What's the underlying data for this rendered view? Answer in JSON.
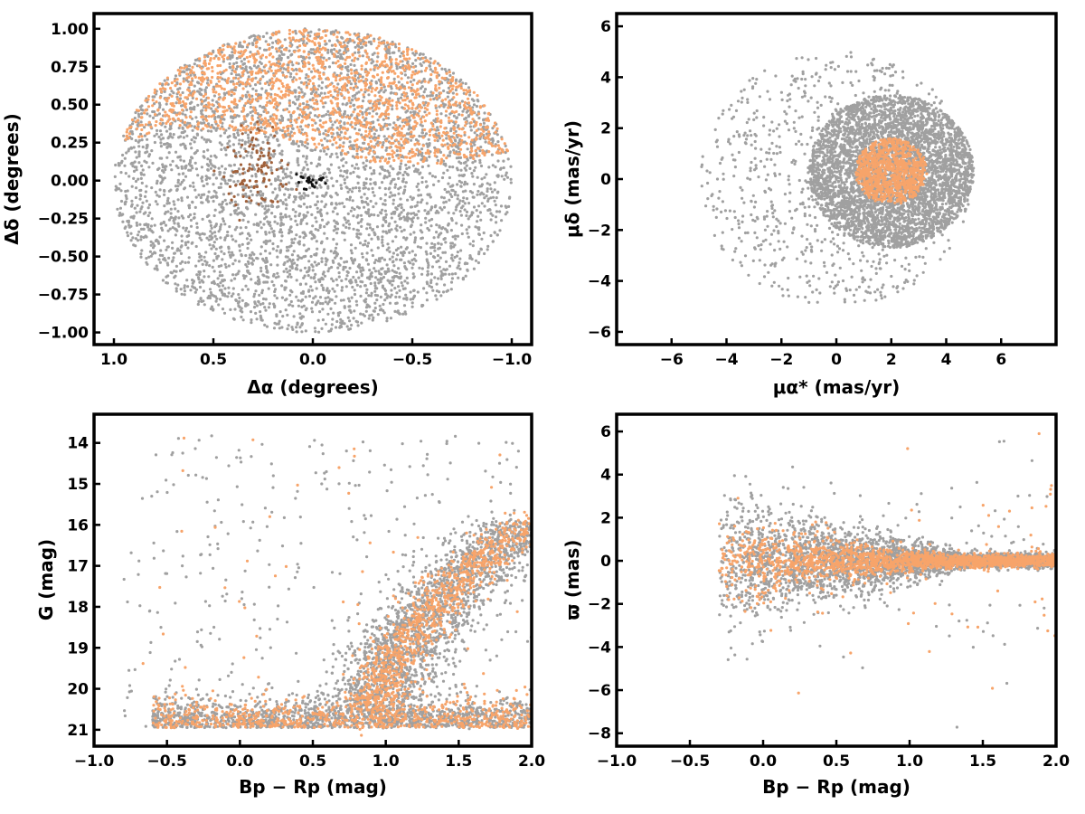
{
  "colors": {
    "field": "#a0a0a0",
    "member": "#f7a46a",
    "black": "#111111",
    "brown": "#a0603a"
  },
  "chart_data": [
    {
      "id": "sky",
      "type": "scatter",
      "xlabel": "Δα (degrees)",
      "ylabel": "Δδ (degrees)",
      "xlim": [
        1.1,
        -1.1
      ],
      "ylim": [
        -1.08,
        1.1
      ],
      "xticks": [
        1.0,
        0.5,
        0.0,
        -0.5,
        -1.0
      ],
      "xtick_labels": [
        "1.0",
        "0.5",
        "0.0",
        "−0.5",
        "−1.0"
      ],
      "yticks": [
        -1.0,
        -0.75,
        -0.5,
        -0.25,
        0.0,
        0.25,
        0.5,
        0.75,
        1.0
      ],
      "ytick_labels": [
        "−1.00",
        "−0.75",
        "−0.50",
        "−0.25",
        "0.00",
        "0.25",
        "0.50",
        "0.75",
        "1.00"
      ],
      "grid": false,
      "series": [
        {
          "shape": "disk",
          "center": [
            0,
            0
          ],
          "radius": 1.0,
          "color": "field",
          "count": 4200
        },
        {
          "shape": "cap",
          "center": [
            0,
            0
          ],
          "radius": 1.0,
          "dec_min": 0.3,
          "color": "member",
          "count": 1500
        },
        {
          "shape": "cluster",
          "center": [
            0.28,
            0.05
          ],
          "spread": [
            0.07,
            0.13
          ],
          "color": "brown",
          "count": 110
        },
        {
          "shape": "cluster",
          "center": [
            0.0,
            0.0
          ],
          "spread": [
            0.04,
            0.03
          ],
          "color": "black",
          "count": 24
        }
      ]
    },
    {
      "id": "proper-motion",
      "type": "scatter",
      "xlabel": "μα* (mas/yr)",
      "ylabel": "μδ (mas/yr)",
      "xlim": [
        -8,
        8
      ],
      "ylim": [
        -6.5,
        6.5
      ],
      "xticks": [
        -6,
        -4,
        -2,
        0,
        2,
        4,
        6
      ],
      "xtick_labels": [
        "−6",
        "−4",
        "−2",
        "0",
        "2",
        "4",
        "6"
      ],
      "yticks": [
        -6,
        -4,
        -2,
        0,
        2,
        4,
        6
      ],
      "ytick_labels": [
        "−6",
        "−4",
        "−2",
        "0",
        "2",
        "4",
        "6"
      ],
      "grid": false,
      "series": [
        {
          "shape": "disk",
          "center": [
            2.0,
            0.3
          ],
          "radius": 3.0,
          "color": "field",
          "count": 4000
        },
        {
          "shape": "disk-sparse",
          "center": [
            0,
            0
          ],
          "radius": 5.0,
          "color": "field",
          "count": 900
        },
        {
          "shape": "disk",
          "center": [
            2.0,
            0.3
          ],
          "radius": 1.3,
          "color": "member",
          "count": 900
        }
      ]
    },
    {
      "id": "cmd",
      "type": "scatter",
      "xlabel": "Bp − Rp (mag)",
      "ylabel": "G (mag)",
      "xlim": [
        -1.0,
        2.0
      ],
      "ylim": [
        21.4,
        13.3
      ],
      "xticks": [
        -1.0,
        -0.5,
        0.0,
        0.5,
        1.0,
        1.5,
        2.0
      ],
      "xtick_labels": [
        "−1.0",
        "−0.5",
        "0.0",
        "0.5",
        "1.0",
        "1.5",
        "2.0"
      ],
      "yticks": [
        14,
        15,
        16,
        17,
        18,
        19,
        20,
        21
      ],
      "ytick_labels": [
        "14",
        "15",
        "16",
        "17",
        "18",
        "19",
        "20",
        "21"
      ],
      "grid": false,
      "series": [
        {
          "shape": "sequence",
          "color": "field",
          "count": 3500
        },
        {
          "shape": "sequence",
          "color": "member",
          "count": 1800
        }
      ]
    },
    {
      "id": "parallax",
      "type": "scatter",
      "xlabel": "Bp − Rp (mag)",
      "ylabel": "ϖ (mas)",
      "xlim": [
        -1.0,
        2.0
      ],
      "ylim": [
        -8.6,
        6.8
      ],
      "xticks": [
        -1.0,
        -0.5,
        0.0,
        0.5,
        1.0,
        1.5,
        2.0
      ],
      "xtick_labels": [
        "−1.0",
        "−0.5",
        "0.0",
        "0.5",
        "1.0",
        "1.5",
        "2.0"
      ],
      "yticks": [
        -8,
        -6,
        -4,
        -2,
        0,
        2,
        4,
        6
      ],
      "ytick_labels": [
        "−8",
        "−6",
        "−4",
        "−2",
        "0",
        "2",
        "4",
        "6"
      ],
      "grid": false,
      "series": [
        {
          "shape": "band",
          "color": "field",
          "count": 3500
        },
        {
          "shape": "band",
          "color": "member",
          "count": 1800
        }
      ]
    }
  ]
}
